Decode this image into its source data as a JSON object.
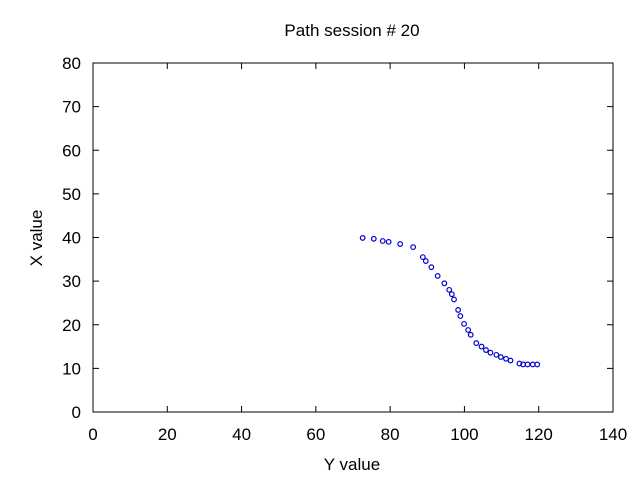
{
  "chart_data": {
    "type": "scatter",
    "title": "Path session # 20",
    "xlabel": "Y value",
    "ylabel": "X value",
    "xlim": [
      0,
      140
    ],
    "ylim": [
      0,
      80
    ],
    "xticks": [
      0,
      20,
      40,
      60,
      80,
      100,
      120,
      140
    ],
    "yticks": [
      0,
      10,
      20,
      30,
      40,
      50,
      60,
      70,
      80
    ],
    "grid": false,
    "legend": "none",
    "marker": "open-circle",
    "color": "#0000cc",
    "series": [
      {
        "x": [
          72.6,
          75.6,
          78.0,
          79.6,
          82.7,
          86.2,
          88.8,
          89.6,
          91.1,
          92.8,
          94.6,
          95.9,
          96.6,
          97.2,
          98.3,
          98.9,
          99.9,
          101.0,
          101.7,
          103.2,
          104.6,
          105.8,
          107.0,
          108.6,
          109.8,
          111.2,
          112.4,
          114.8,
          115.8,
          117.0,
          118.4,
          119.6
        ],
        "y": [
          39.9,
          39.7,
          39.2,
          39.0,
          38.5,
          37.8,
          35.5,
          34.6,
          33.2,
          31.2,
          29.5,
          28.0,
          27.0,
          25.8,
          23.4,
          22.0,
          20.2,
          18.8,
          17.7,
          15.8,
          15.0,
          14.2,
          13.6,
          13.1,
          12.6,
          12.2,
          11.8,
          11.1,
          10.9,
          10.9,
          10.9,
          10.9
        ]
      }
    ]
  }
}
